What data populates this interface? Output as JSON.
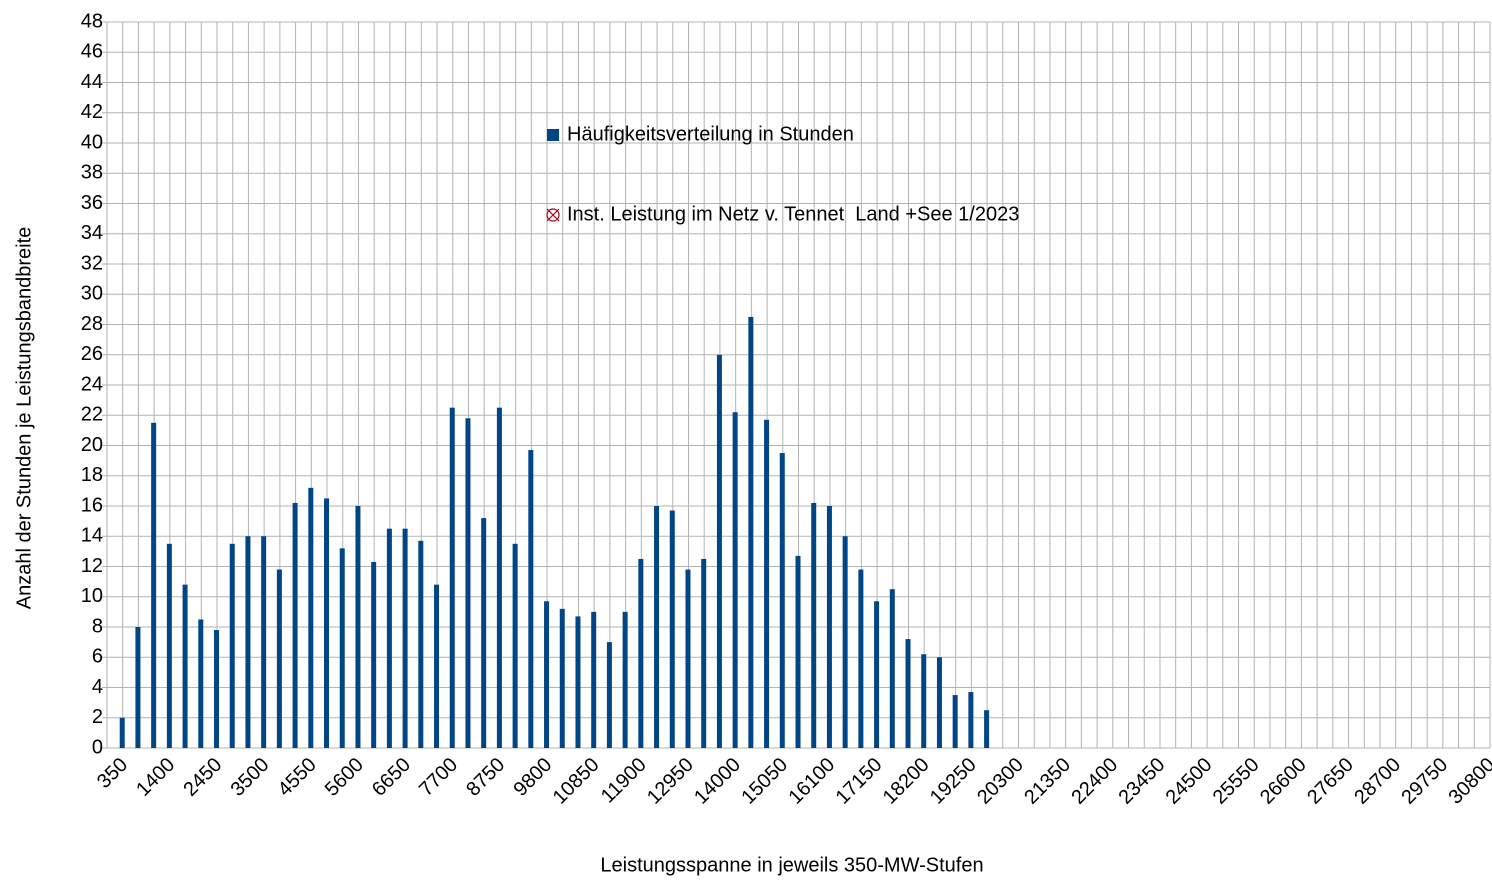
{
  "chart_data": {
    "type": "bar",
    "x_label": "Leistungsspanne in jeweils 350-MW-Stufen",
    "y_label": "Anzahl der Stunden je Leistungsbandbreite",
    "categories": [
      "350",
      null,
      null,
      "1400",
      null,
      null,
      "2450",
      null,
      null,
      "3500",
      null,
      null,
      "4550",
      null,
      null,
      "5600",
      null,
      null,
      "6650",
      null,
      null,
      "7700",
      null,
      null,
      "8750",
      null,
      null,
      "9800",
      null,
      null,
      "10850",
      null,
      null,
      "11900",
      null,
      null,
      "12950",
      null,
      null,
      "14000",
      null,
      null,
      "15050",
      null,
      null,
      "16100",
      null,
      null,
      "17150",
      null,
      null,
      "18200",
      null,
      null,
      "19250",
      null,
      null,
      "20300",
      null,
      null,
      "21350",
      null,
      null,
      "22400",
      null,
      null,
      "23450",
      null,
      null,
      "24500",
      null,
      null,
      "25550",
      null,
      null,
      "26600",
      null,
      null,
      "27650",
      null,
      null,
      "28700",
      null,
      null,
      "29750",
      null,
      null,
      "30800"
    ],
    "series": [
      {
        "name": "Häufigkeitsverteilung in Stunden",
        "color": "#004586",
        "values": [
          2,
          8,
          21.5,
          13.5,
          10.8,
          8.5,
          7.8,
          13.5,
          14,
          14,
          11.8,
          16.2,
          17.2,
          16.5,
          13.2,
          16,
          12.3,
          14.5,
          14.5,
          13.7,
          10.8,
          22.5,
          21.8,
          15.2,
          22.5,
          13.5,
          19.7,
          9.7,
          9.2,
          8.7,
          9,
          7,
          9,
          12.5,
          16,
          15.7,
          11.8,
          12.5,
          26,
          22.2,
          28.5,
          21.7,
          19.5,
          12.7,
          16.2,
          16,
          14,
          11.8,
          9.7,
          10.5,
          7.2,
          6.2,
          6,
          3.5,
          3.7,
          2.5,
          null,
          null,
          null,
          null,
          null,
          null,
          null,
          null,
          null,
          null,
          null,
          null,
          null,
          null,
          null,
          null,
          null,
          null,
          null,
          null,
          null,
          null,
          null,
          null,
          null,
          null,
          null,
          null,
          null,
          null,
          null,
          null
        ]
      },
      {
        "name": "Inst. Leistung im Netz v. Tennet  Land +See 1/2023",
        "color": "#a3001a",
        "values": [
          null,
          null,
          null,
          null,
          null,
          null,
          null,
          null,
          null,
          null,
          null,
          null,
          null,
          null,
          null,
          null,
          null,
          null,
          null,
          null,
          null,
          null,
          null,
          null,
          null,
          null,
          null,
          null,
          null,
          null,
          null,
          null,
          null,
          null,
          null,
          null,
          null,
          null,
          null,
          null,
          null,
          null,
          null,
          null,
          null,
          null,
          null,
          null,
          null,
          null,
          null,
          null,
          null,
          null,
          null,
          null,
          null,
          null,
          null,
          null,
          null,
          null,
          null,
          null,
          null,
          null,
          null,
          null,
          null,
          null,
          null,
          null,
          null,
          null,
          null,
          null,
          null,
          null,
          null,
          null,
          null,
          null,
          null,
          null,
          null,
          null,
          null,
          null
        ]
      }
    ],
    "ylim": [
      0,
      48
    ],
    "yticks": [
      0,
      2,
      4,
      6,
      8,
      10,
      12,
      14,
      16,
      18,
      20,
      22,
      24,
      26,
      28,
      30,
      32,
      34,
      36,
      38,
      40,
      42,
      44,
      46,
      48
    ],
    "grid": true
  }
}
